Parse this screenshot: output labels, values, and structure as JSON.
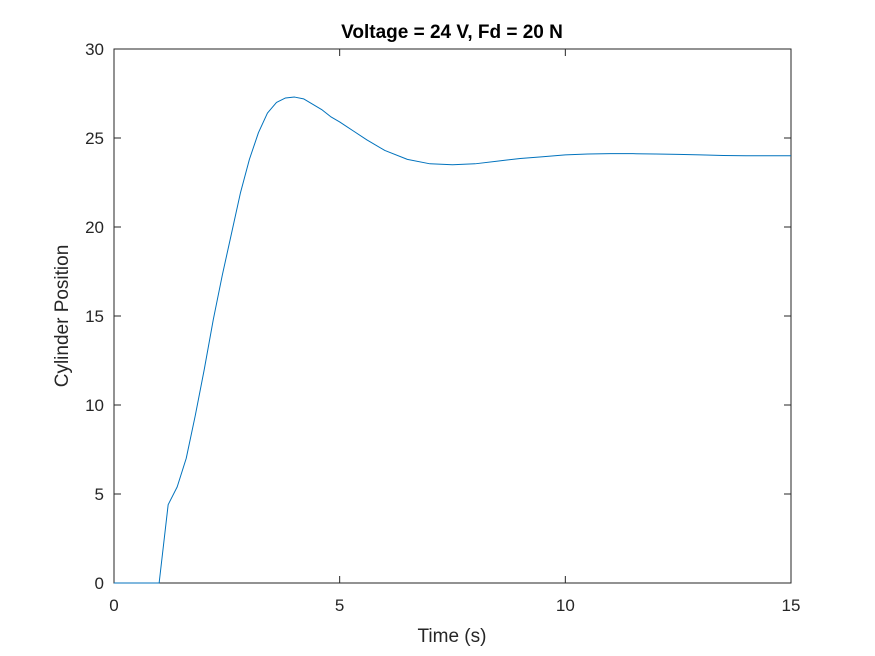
{
  "chart_data": {
    "type": "line",
    "title": "Voltage = 24 V, Fd = 20 N",
    "xlabel": "Time (s)",
    "ylabel": "Cylinder Position",
    "xlim": [
      0,
      15
    ],
    "ylim": [
      0,
      30
    ],
    "xticks": [
      0,
      5,
      10,
      15
    ],
    "yticks": [
      0,
      5,
      10,
      15,
      20,
      25,
      30
    ],
    "xtick_labels": [
      "0",
      "5",
      "10",
      "15"
    ],
    "ytick_labels": [
      "0",
      "5",
      "10",
      "15",
      "20",
      "25",
      "30"
    ],
    "grid": false,
    "series": [
      {
        "color": "#0072BD",
        "x": [
          0,
          0.5,
          1.0,
          1.2,
          1.4,
          1.6,
          1.8,
          2.0,
          2.2,
          2.4,
          2.6,
          2.8,
          3.0,
          3.2,
          3.4,
          3.6,
          3.8,
          4.0,
          4.2,
          4.4,
          4.6,
          4.8,
          5.0,
          5.3,
          5.6,
          6.0,
          6.5,
          7.0,
          7.5,
          8.0,
          8.5,
          9.0,
          9.5,
          10.0,
          10.5,
          11.0,
          11.5,
          12.0,
          12.5,
          13.0,
          13.5,
          14.0,
          14.5,
          15.0
        ],
        "y": [
          0,
          0,
          0,
          4.4,
          5.4,
          7.0,
          9.4,
          12.0,
          14.8,
          17.3,
          19.6,
          21.9,
          23.8,
          25.3,
          26.4,
          27.0,
          27.25,
          27.3,
          27.2,
          26.9,
          26.6,
          26.2,
          25.9,
          25.4,
          24.9,
          24.3,
          23.8,
          23.55,
          23.5,
          23.55,
          23.7,
          23.85,
          23.95,
          24.05,
          24.1,
          24.12,
          24.12,
          24.1,
          24.08,
          24.05,
          24.02,
          24.0,
          24.0,
          24.0
        ]
      }
    ]
  }
}
